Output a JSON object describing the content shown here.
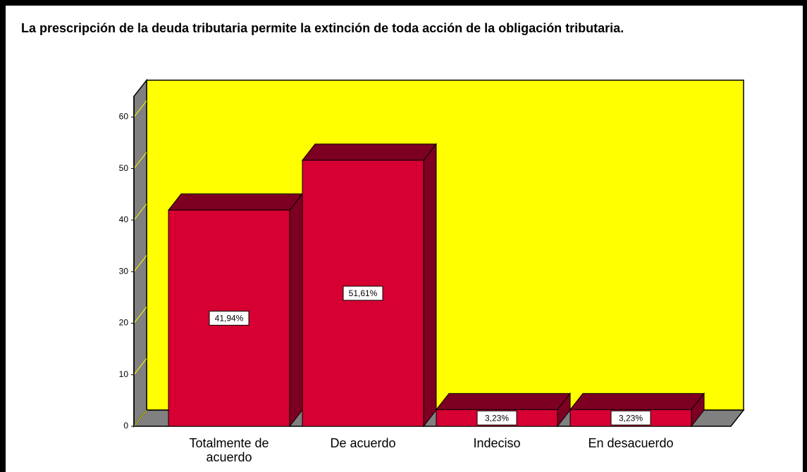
{
  "chart_data": {
    "type": "bar3d",
    "title": "La prescripción de la deuda tributaria permite la extinción de toda acción de la obligación tributaria.",
    "categories": [
      "Totalmente de acuerdo",
      "De acuerdo",
      "Indeciso",
      "En desacuerdo"
    ],
    "values": [
      41.94,
      51.61,
      3.23,
      3.23
    ],
    "value_labels": [
      "41,94%",
      "51,61%",
      "3,23%",
      "3,23%"
    ],
    "color": "#d60032",
    "ylim": [
      0,
      64
    ],
    "yticks": [
      0,
      10,
      20,
      30,
      40,
      50,
      60
    ],
    "background": "#ffff00"
  }
}
